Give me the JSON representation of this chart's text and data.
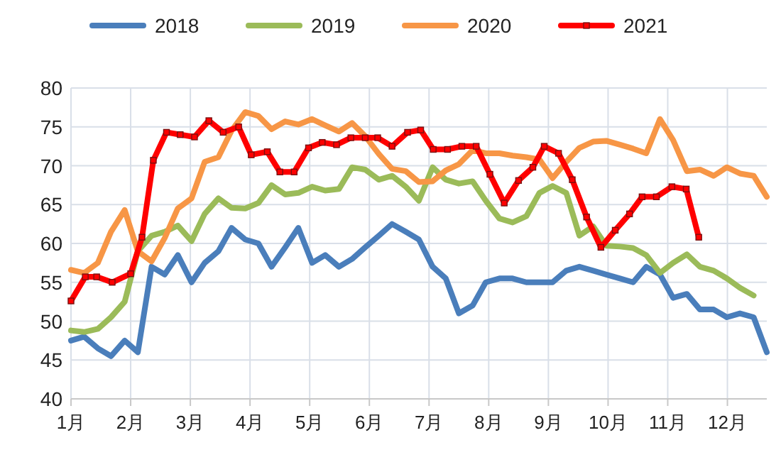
{
  "chart_data": {
    "type": "line",
    "x": [
      1,
      1.22,
      1.45,
      1.67,
      1.9,
      2.12,
      2.35,
      2.57,
      2.79,
      3.02,
      3.24,
      3.47,
      3.69,
      3.92,
      4.14,
      4.36,
      4.59,
      4.81,
      5.04,
      5.26,
      5.49,
      5.71,
      5.93,
      6.16,
      6.38,
      6.61,
      6.83,
      7.06,
      7.28,
      7.5,
      7.73,
      7.95,
      8.18,
      8.4,
      8.63,
      8.85,
      9.07,
      9.3,
      9.52,
      9.75,
      9.97,
      10.2,
      10.42,
      10.64,
      10.87,
      11.09,
      11.32,
      11.54,
      11.77,
      11.99,
      12.21,
      12.44,
      12.66
    ],
    "series": [
      {
        "name": "2018",
        "color": "#4a7ebb",
        "values": [
          47.5,
          48,
          46.5,
          45.5,
          47.5,
          46,
          57,
          56,
          58.5,
          55,
          57.5,
          59,
          62,
          60.5,
          60,
          57,
          59.5,
          62,
          57.5,
          58.5,
          57,
          58,
          59.5,
          61,
          62.5,
          61.5,
          60.5,
          57,
          55.5,
          51,
          52,
          55,
          55.5,
          55.5,
          55,
          55,
          55,
          56.5,
          57,
          56.5,
          56,
          55.5,
          55,
          57,
          56,
          53,
          53.5,
          51.5,
          51.5,
          50.5,
          51,
          50.5,
          46
        ]
      },
      {
        "name": "2019",
        "color": "#9bbb59",
        "values": [
          48.8,
          48.6,
          49,
          50.5,
          52.5,
          59,
          61,
          61.5,
          62.3,
          60.3,
          63.8,
          65.8,
          64.6,
          64.5,
          65.2,
          67.5,
          66.3,
          66.5,
          67.3,
          66.8,
          67,
          69.8,
          69.5,
          68.2,
          68.7,
          67.3,
          65.5,
          69.8,
          68.2,
          67.7,
          68,
          65.5,
          63.2,
          62.7,
          63.5,
          66.5,
          67.4,
          66.5,
          61,
          62.2,
          59.7,
          59.6,
          59.4,
          58.5,
          56.2,
          57.5,
          58.6,
          57,
          56.5,
          55.5,
          54.3,
          53.3,
          null
        ]
      },
      {
        "name": "2020",
        "color": "#f79646",
        "values": [
          56.6,
          56.2,
          57.5,
          61.5,
          64.3,
          59,
          57.7,
          60.7,
          64.5,
          65.8,
          70.5,
          71.1,
          74.5,
          76.9,
          76.4,
          74.7,
          75.7,
          75.3,
          76,
          75.2,
          74.4,
          75.5,
          73.8,
          71.5,
          69.6,
          69.3,
          67.9,
          68,
          69.4,
          70.2,
          72,
          71.6,
          71.6,
          71.3,
          71.1,
          70.8,
          68.4,
          70.5,
          72.3,
          73.1,
          73.2,
          72.7,
          72.2,
          71.6,
          76,
          73.3,
          69.3,
          69.5,
          68.7,
          69.8,
          69,
          68.7,
          66
        ]
      },
      {
        "name": "2021",
        "color": "#ff0000",
        "marker": "square",
        "x": [
          1,
          1.24,
          1.43,
          1.69,
          2,
          2.19,
          2.38,
          2.6,
          2.83,
          3.07,
          3.31,
          3.55,
          3.81,
          4.02,
          4.29,
          4.5,
          4.74,
          4.98,
          5.21,
          5.45,
          5.69,
          5.93,
          6.14,
          6.38,
          6.64,
          6.86,
          7.07,
          7.31,
          7.55,
          7.79,
          8.02,
          8.26,
          8.5,
          8.74,
          8.93,
          9.17,
          9.4,
          9.64,
          9.88,
          10.12,
          10.36,
          10.57,
          10.81,
          11.07,
          11.31,
          11.52
        ],
        "values": [
          52.6,
          55.7,
          55.7,
          55,
          56.1,
          60.8,
          70.7,
          74.3,
          74,
          73.7,
          75.8,
          74.3,
          75,
          71.4,
          71.8,
          69.2,
          69.2,
          72.3,
          73,
          72.7,
          73.6,
          73.6,
          73.6,
          72.5,
          74.3,
          74.6,
          72.1,
          72.1,
          72.5,
          72.5,
          68.9,
          65.2,
          68.1,
          69.8,
          72.5,
          71.6,
          68.2,
          63.4,
          59.5,
          61.7,
          63.8,
          66,
          66,
          67.3,
          67,
          60.8
        ]
      }
    ],
    "xlim": [
      1,
      12.66
    ],
    "xticks": [
      {
        "value": 1,
        "label": "1月"
      },
      {
        "value": 2,
        "label": "2月"
      },
      {
        "value": 3,
        "label": "3月"
      },
      {
        "value": 4,
        "label": "4月"
      },
      {
        "value": 5,
        "label": "5月"
      },
      {
        "value": 6,
        "label": "6月"
      },
      {
        "value": 7,
        "label": "7月"
      },
      {
        "value": 8,
        "label": "8月"
      },
      {
        "value": 9,
        "label": "9月"
      },
      {
        "value": 10,
        "label": "10月"
      },
      {
        "value": 11,
        "label": "11月"
      },
      {
        "value": 12,
        "label": "12月"
      }
    ],
    "ylim": [
      40,
      80
    ],
    "yticks": [
      40,
      45,
      50,
      55,
      60,
      65,
      70,
      75,
      80
    ],
    "grid": true,
    "legend": "top"
  }
}
